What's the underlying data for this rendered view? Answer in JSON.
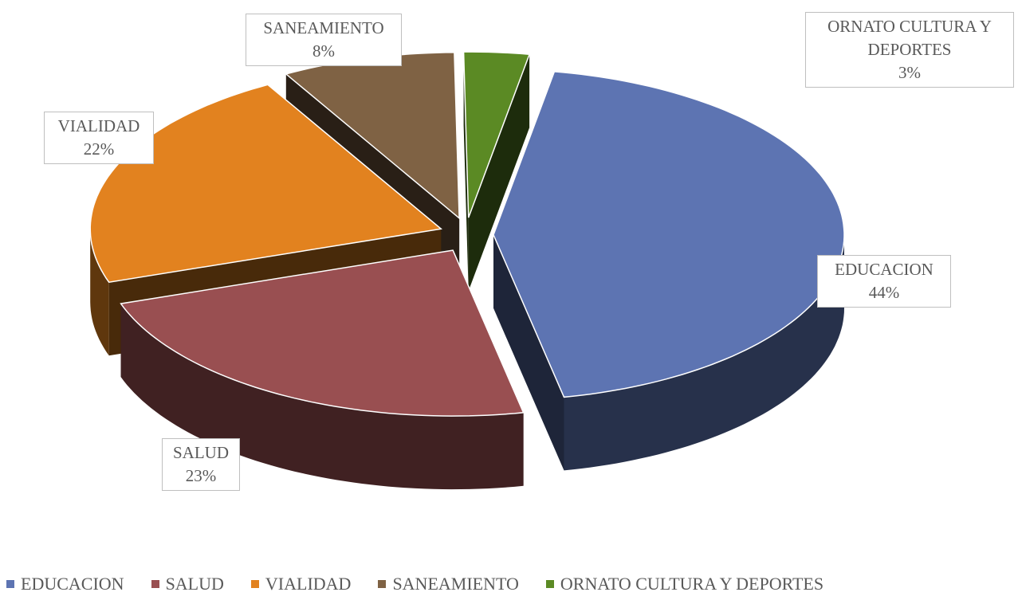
{
  "chart_data": {
    "type": "pie3d",
    "categories": [
      "EDUCACION",
      "SALUD",
      "VIALIDAD",
      "SANEAMIENTO",
      "ORNATO CULTURA Y DEPORTES"
    ],
    "values": [
      44,
      23,
      22,
      8,
      3
    ],
    "value_labels": [
      "44%",
      "23%",
      "22%",
      "8%",
      "3%"
    ],
    "colors": [
      "#5d74b2",
      "#994f51",
      "#e2821f",
      "#7f6244",
      "#5b8a24"
    ],
    "legend": "bottom"
  }
}
